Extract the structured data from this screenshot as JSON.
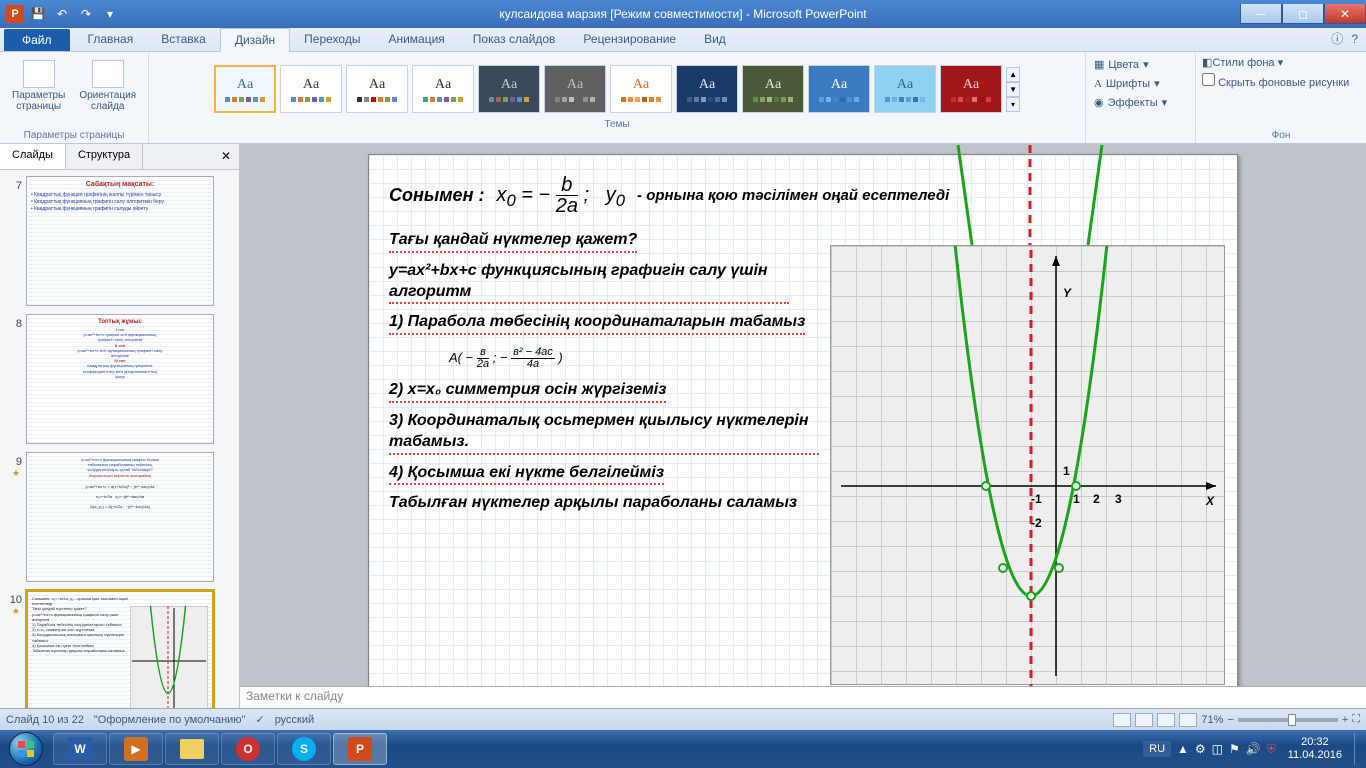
{
  "titlebar": {
    "app_letter": "P",
    "title": "кулсаидова марзия [Режим совместимости] - Microsoft PowerPoint"
  },
  "ribbon": {
    "file": "Файл",
    "tabs": [
      "Главная",
      "Вставка",
      "Дизайн",
      "Переходы",
      "Анимация",
      "Показ слайдов",
      "Рецензирование",
      "Вид"
    ],
    "active_tab": "Дизайн",
    "page_setup": {
      "params": "Параметры\nстраницы",
      "orient": "Ориентация\nслайда",
      "group": "Параметры страницы"
    },
    "themes_group": "Темы",
    "colors": "Цвета",
    "fonts": "Шрифты",
    "effects": "Эффекты",
    "bg_style": "Стили фона",
    "bg_hide": "Скрыть фоновые рисунки",
    "bg_group": "Фон"
  },
  "theme_tiles": [
    {
      "bg": "#f0f7ff",
      "fg": "#3a6fa0",
      "dots": [
        "#5a8ac0",
        "#d08030",
        "#80a050",
        "#7a5aa0",
        "#4aa0b0",
        "#d0a030"
      ]
    },
    {
      "bg": "#ffffff",
      "fg": "#333333",
      "dots": [
        "#5a8ac0",
        "#d08030",
        "#80a050",
        "#7a5aa0",
        "#4aa0b0",
        "#d0a030"
      ]
    },
    {
      "bg": "#ffffff",
      "fg": "#333333",
      "dots": [
        "#333",
        "#888",
        "#c00",
        "#d08030",
        "#80a050",
        "#5a8ac0"
      ]
    },
    {
      "bg": "#ffffff",
      "fg": "#333333",
      "dots": [
        "#4aa090",
        "#d08030",
        "#5a8ac0",
        "#7a5aa0",
        "#80a050",
        "#d0a030"
      ]
    },
    {
      "bg": "#3a4a5a",
      "fg": "#c8d0d8",
      "dots": [
        "#6a8aa0",
        "#a06a4a",
        "#80a050",
        "#7a5aa0",
        "#4aa0b0",
        "#d0a030"
      ]
    },
    {
      "bg": "#606060",
      "fg": "#c0c0c0",
      "dots": [
        "#808080",
        "#a0a0a0",
        "#c0c0c0",
        "#606060",
        "#909090",
        "#b0b0b0"
      ]
    },
    {
      "bg": "#ffffff",
      "fg": "#d07020",
      "dots": [
        "#d07020",
        "#f09030",
        "#ffa050",
        "#c06010",
        "#e08020",
        "#ff9040"
      ]
    },
    {
      "bg": "#1a3a6a",
      "fg": "#e0e8f0",
      "dots": [
        "#3a5a8a",
        "#5a7aa0",
        "#7a9ac0",
        "#2a4a7a",
        "#4a6a9a",
        "#6a8aba"
      ]
    },
    {
      "bg": "#4a5a3a",
      "fg": "#e0e8d0",
      "dots": [
        "#6a8a4a",
        "#8aa060",
        "#a0b880",
        "#5a7a3a",
        "#7a9a5a",
        "#9ab070"
      ]
    },
    {
      "bg": "#3a7ac0",
      "fg": "#ffffff",
      "dots": [
        "#5a9ae0",
        "#7ab0f0",
        "#3a88d0",
        "#2a68b0",
        "#4a90d8",
        "#6aa8e8"
      ]
    },
    {
      "bg": "#90d0f0",
      "fg": "#2a6aa0",
      "dots": [
        "#4a9ad0",
        "#6ab0e0",
        "#3a88c0",
        "#5aa0d8",
        "#2a78b8",
        "#7ab8e8"
      ]
    },
    {
      "bg": "#a01818",
      "fg": "#f0d0d0",
      "dots": [
        "#c03030",
        "#d05050",
        "#b02020",
        "#e07070",
        "#a01010",
        "#d04040"
      ]
    }
  ],
  "slide_panel": {
    "tabs": [
      "Слайды",
      "Структура"
    ],
    "thumbs": [
      {
        "num": "7",
        "star": false
      },
      {
        "num": "8",
        "star": false
      },
      {
        "num": "9",
        "star": true
      },
      {
        "num": "10",
        "star": true,
        "selected": true
      }
    ]
  },
  "slide_content": {
    "line1a": "Сонымен :",
    "formula_x0": "x₀ = − b / 2a ;   y₀",
    "line1b": "- орнына қою тәсілімен оңай есептеледі",
    "line2": "Тағы қандай нүктелер қажет?",
    "line3": "y=ax²+bx+c функциясының графигін салу үшін алгоритм",
    "step1": "1) Парабола төбесінің координаталарын табамыз",
    "formula_a": "A( − b/2a ; − (b²−4ac)/4a )",
    "step2": "2)  x=x₀  симметрия осін жүргіземіз",
    "step3": "3)   Координаталық осьтермен қиылысу нүктелерін табамыз.",
    "step4": "4) Қосымша екі нүкте  белгілейміз",
    "line_end": "Табылған нүктелер арқылы параболаны саламыз",
    "axis_y": "Y",
    "axis_x": "X",
    "tick_1": "1",
    "tick_2": "2",
    "tick_3": "3",
    "tick_m1": "-1",
    "tick_m2": "-2"
  },
  "graph": {
    "parabola_color": "#1aa41a",
    "symmetry_color": "#d02020",
    "axis_color": "#000000"
  },
  "notes": "Заметки к слайду",
  "status": {
    "slide": "Слайд 10 из 22",
    "theme": "\"Оформление по умолчанию\"",
    "lang": "русский",
    "zoom": "71%"
  },
  "taskbar": {
    "lang": "RU",
    "time": "20:32",
    "date": "11.04.2016"
  }
}
